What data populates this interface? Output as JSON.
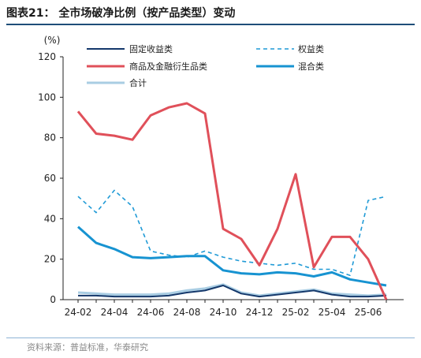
{
  "figure": {
    "title": "图表21：  全市场破净比例（按产品类型）变动",
    "source": "资料来源：普益标准，华泰研究"
  },
  "colors": {
    "fixed_income": "#14386b",
    "equity": "#1f9ad6",
    "commodity": "#e0505a",
    "mixed": "#1793d1",
    "total": "#a9cde3",
    "axis": "#222222",
    "title_rule": "#1f4e79"
  },
  "chart_data": {
    "type": "line",
    "ylabel": "(%)",
    "ylim": [
      0,
      120
    ],
    "yticks": [
      0,
      20,
      40,
      60,
      80,
      100,
      120
    ],
    "x": [
      "24-02",
      "24-03",
      "24-04",
      "24-05",
      "24-06",
      "24-07",
      "24-08",
      "24-09",
      "24-10",
      "24-11",
      "24-12",
      "25-01",
      "25-02",
      "25-03",
      "25-04",
      "25-05",
      "25-06",
      "25-07"
    ],
    "xtick_labels": [
      "24-02",
      "24-04",
      "24-06",
      "24-08",
      "24-10",
      "24-12",
      "25-02",
      "25-04",
      "25-06"
    ],
    "grid": false,
    "legend": "top",
    "series": [
      {
        "name": "固定收益类",
        "color_key": "fixed_income",
        "style": "solid",
        "values": [
          2,
          2,
          1.5,
          1.5,
          1.5,
          2,
          3.5,
          4.5,
          7,
          3,
          1.5,
          2.5,
          3.5,
          4.5,
          2.5,
          1.5,
          1.5,
          2
        ]
      },
      {
        "name": "权益类",
        "color_key": "equity",
        "style": "dashed",
        "values": [
          51,
          43,
          54,
          46,
          24,
          22,
          21,
          24,
          21,
          19,
          18,
          17,
          18,
          15,
          15,
          12,
          49,
          51
        ]
      },
      {
        "name": "商品及金融衍生品类",
        "color_key": "commodity",
        "style": "solid",
        "values": [
          93,
          82,
          81,
          79,
          91,
          95,
          97,
          92,
          35,
          30,
          17,
          35,
          62,
          16,
          31,
          31,
          20,
          0
        ]
      },
      {
        "name": "混合类",
        "color_key": "mixed",
        "style": "solid",
        "values": [
          36,
          28,
          25,
          21,
          20.5,
          21,
          21.5,
          21.5,
          14.5,
          13,
          12.5,
          13.5,
          13,
          11.5,
          13.5,
          10,
          8.5,
          7
        ]
      },
      {
        "name": "合计",
        "color_key": "total",
        "style": "solid",
        "values": [
          3.5,
          3,
          2.5,
          2.5,
          2.5,
          3,
          4.5,
          5.5,
          7.5,
          3.5,
          2,
          3,
          4,
          5,
          3,
          2.5,
          2,
          2.5
        ]
      }
    ]
  }
}
